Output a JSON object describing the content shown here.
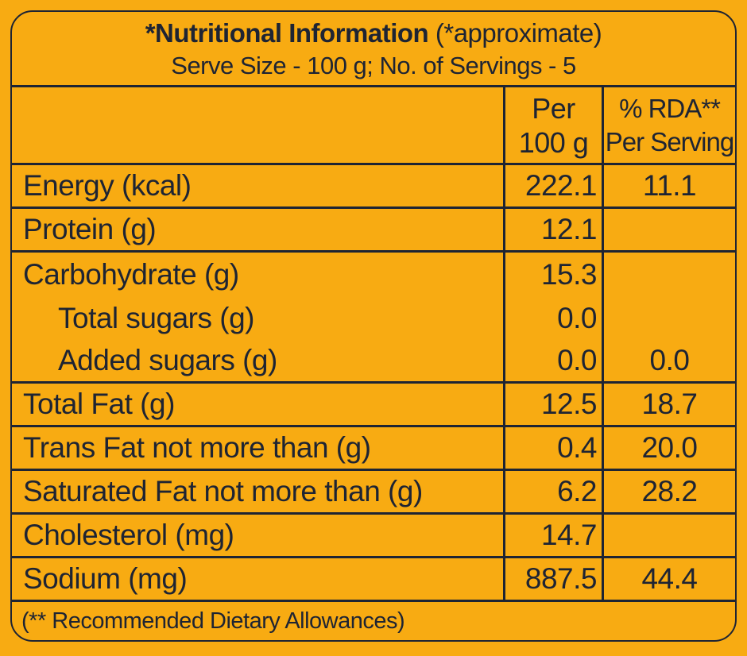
{
  "label": {
    "title_bold": "*Nutritional Information",
    "title_suffix": " (*approximate)",
    "serve_line": "Serve Size - 100 g; No. of Servings - 5",
    "columns": {
      "per": "Per",
      "per_unit": "100 g",
      "rda": "% RDA**",
      "rda_sub": "Per Serving"
    },
    "rows": [
      {
        "label": "Energy (kcal)",
        "per100": "222.1",
        "rda": "11.1"
      },
      {
        "label": "Protein (g)",
        "per100": "12.1",
        "rda": ""
      },
      {
        "label": "Carbohydrate (g)",
        "per100": "15.3",
        "rda": ""
      },
      {
        "label": "Total sugars (g)",
        "per100": "0.0",
        "rda": ""
      },
      {
        "label": "Added sugars (g)",
        "per100": "0.0",
        "rda": "0.0"
      },
      {
        "label": "Total Fat (g)",
        "per100": "12.5",
        "rda": "18.7"
      },
      {
        "label": "Trans Fat not more than (g)",
        "per100": "0.4",
        "rda": "20.0"
      },
      {
        "label": "Saturated Fat not more than (g)",
        "per100": "6.2",
        "rda": "28.2"
      },
      {
        "label": "Cholesterol (mg)",
        "per100": "14.7",
        "rda": ""
      },
      {
        "label": "Sodium (mg)",
        "per100": "887.5",
        "rda": "44.4"
      }
    ],
    "footnote": "(** Recommended Dietary Allowances)",
    "colors": {
      "background": "#F8AB12",
      "ink": "#1E2433"
    }
  }
}
